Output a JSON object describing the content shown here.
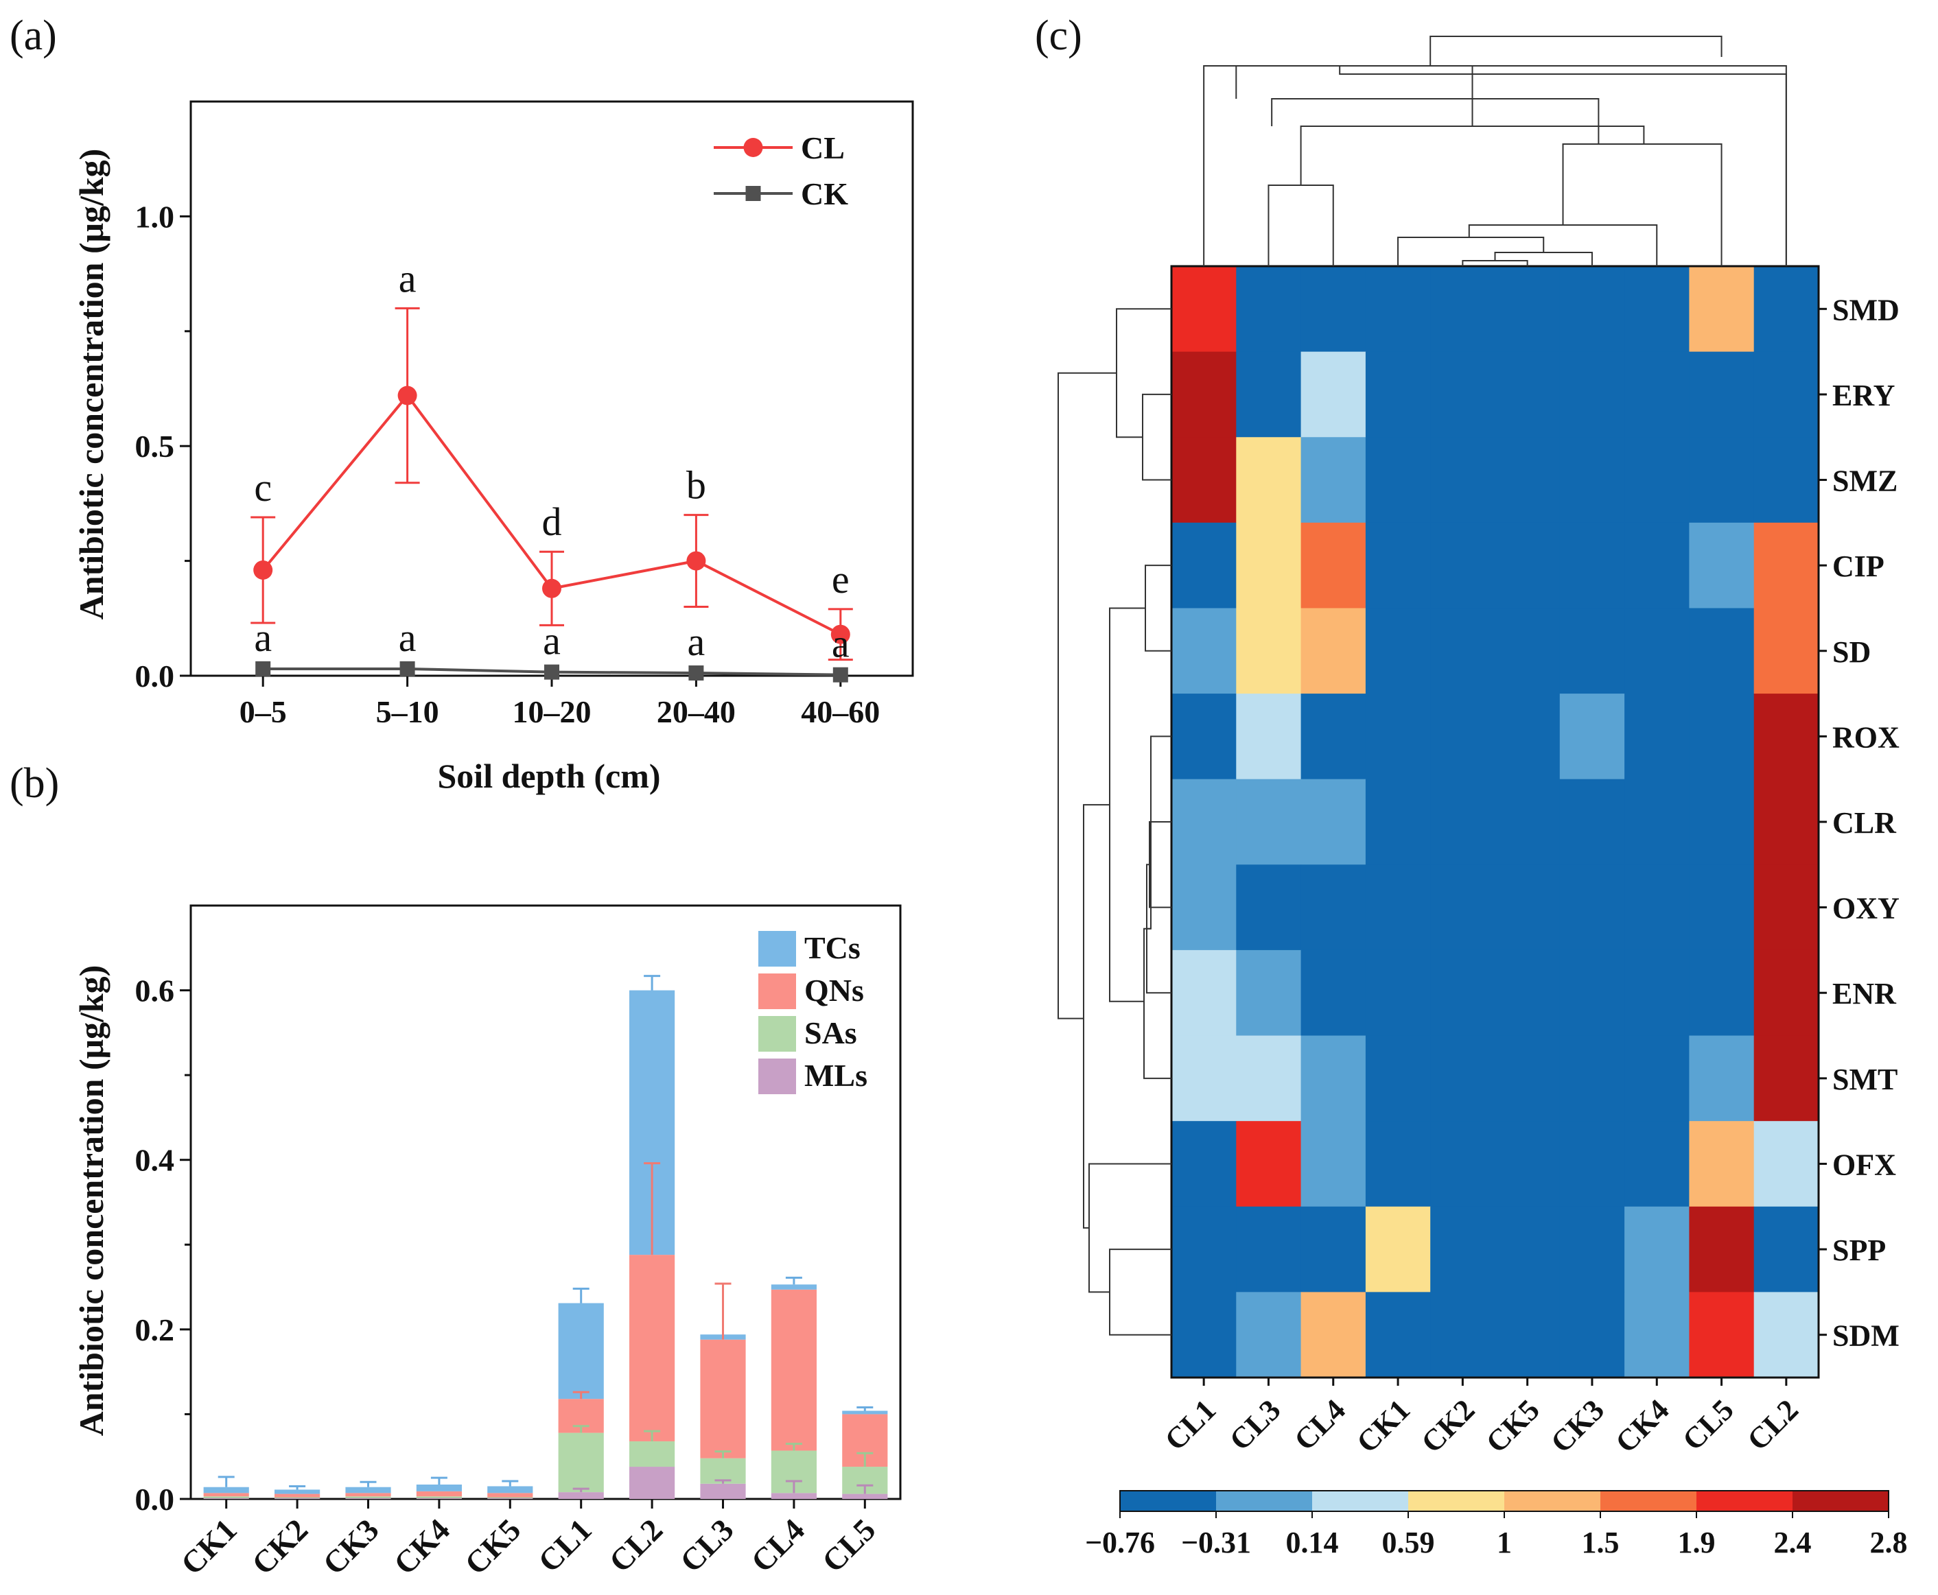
{
  "colors": {
    "CL": "#f03c3c",
    "CK": "#505050",
    "TCs": "#7ab8e6",
    "QNs": "#fa9088",
    "SAs": "#b2d8a9",
    "MLs": "#c8a0c6",
    "heat_scale": [
      "#1169b0",
      "#5aa3d3",
      "#bddff0",
      "#fbe08e",
      "#fbb772",
      "#f5703f",
      "#ec2a23",
      "#b51918"
    ]
  },
  "panels": {
    "a": "(a)",
    "b": "(b)",
    "c": "(c)"
  },
  "chart_data": [
    {
      "id": "a",
      "type": "line",
      "xlabel": "Soil depth (cm)",
      "ylabel": "Antibiotic concentration (μg/kg)",
      "categories": [
        "0–5",
        "5–10",
        "10–20",
        "20–40",
        "40–60"
      ],
      "ylim": [
        0,
        1.25
      ],
      "yticks": [
        0.0,
        0.5,
        1.0
      ],
      "ytick_labels": [
        "0.0",
        "0.5",
        "1.0"
      ],
      "legend_position": "top-right",
      "series": [
        {
          "name": "CL",
          "marker": "circle",
          "values": [
            0.23,
            0.61,
            0.19,
            0.25,
            0.09
          ],
          "errors": [
            0.115,
            0.19,
            0.08,
            0.1,
            0.055
          ],
          "letters": [
            "c",
            "a",
            "d",
            "b",
            "e"
          ]
        },
        {
          "name": "CK",
          "marker": "square",
          "values": [
            0.015,
            0.015,
            0.008,
            0.006,
            0.002
          ],
          "errors": [
            0.006,
            0.006,
            0.004,
            0.003,
            0.001
          ],
          "letters": [
            "a",
            "a",
            "a",
            "a",
            "a"
          ]
        }
      ]
    },
    {
      "id": "b",
      "type": "bar",
      "stacked": true,
      "ylabel": "Antibiotic concentration (μg/kg)",
      "categories": [
        "CK1",
        "CK2",
        "CK3",
        "CK4",
        "CK5",
        "CL1",
        "CL2",
        "CL3",
        "CL4",
        "CL5"
      ],
      "ylim": [
        0,
        0.7
      ],
      "yticks": [
        0.0,
        0.2,
        0.4,
        0.6
      ],
      "ytick_labels": [
        "0.0",
        "0.2",
        "0.4",
        "0.6"
      ],
      "legend_position": "top-right",
      "series": [
        {
          "name": "MLs",
          "values": [
            0.001,
            0.001,
            0.001,
            0.001,
            0.001,
            0.008,
            0.038,
            0.018,
            0.007,
            0.006
          ],
          "errors": [
            0.0,
            0.0,
            0.0,
            0.0,
            0.0,
            0.004,
            0.0,
            0.004,
            0.014,
            0.01
          ]
        },
        {
          "name": "SAs",
          "values": [
            0.002,
            0.001,
            0.002,
            0.002,
            0.001,
            0.07,
            0.03,
            0.03,
            0.05,
            0.032
          ],
          "errors": [
            0.0,
            0.0,
            0.0,
            0.0,
            0.0,
            0.008,
            0.012,
            0.008,
            0.008,
            0.016
          ]
        },
        {
          "name": "QNs",
          "values": [
            0.004,
            0.004,
            0.004,
            0.006,
            0.005,
            0.04,
            0.22,
            0.14,
            0.19,
            0.062
          ],
          "errors": [
            0.0,
            0.0,
            0.0,
            0.0,
            0.0,
            0.008,
            0.108,
            0.066,
            0.0,
            0.0
          ]
        },
        {
          "name": "TCs",
          "values": [
            0.007,
            0.005,
            0.007,
            0.008,
            0.008,
            0.113,
            0.312,
            0.006,
            0.006,
            0.004
          ],
          "errors": [
            0.012,
            0.004,
            0.006,
            0.008,
            0.006,
            0.017,
            0.017,
            0.0,
            0.008,
            0.004
          ]
        }
      ]
    },
    {
      "id": "c",
      "type": "heatmap",
      "columns": [
        "CL1",
        "CL3",
        "CL4",
        "CK1",
        "CK2",
        "CK5",
        "CK3",
        "CK4",
        "CL5",
        "CL2"
      ],
      "rows": [
        "SMD",
        "ERY",
        "SMZ",
        "CIP",
        "SD",
        "ROX",
        "CLR",
        "OXY",
        "ENR",
        "SMT",
        "OFX",
        "SPP",
        "SDM"
      ],
      "bins": [
        -0.76,
        -0.31,
        0.14,
        0.59,
        1,
        1.5,
        1.9,
        2.4,
        2.8
      ],
      "colorbar_labels": [
        "−0.76",
        "−0.31",
        "0.14",
        "0.59",
        "1",
        "1.5",
        "1.9",
        "2.4",
        "2.8"
      ],
      "values": [
        [
          2.2,
          -0.6,
          -0.6,
          -0.6,
          -0.6,
          -0.6,
          -0.6,
          -0.6,
          1.2,
          -0.6
        ],
        [
          2.6,
          -0.6,
          0.3,
          -0.6,
          -0.6,
          -0.6,
          -0.6,
          -0.6,
          -0.6,
          -0.6
        ],
        [
          2.6,
          0.8,
          -0.1,
          -0.6,
          -0.6,
          -0.6,
          -0.6,
          -0.6,
          -0.6,
          -0.6
        ],
        [
          -0.6,
          0.8,
          1.7,
          -0.6,
          -0.6,
          -0.6,
          -0.6,
          -0.6,
          -0.1,
          1.7
        ],
        [
          -0.1,
          0.8,
          1.2,
          -0.6,
          -0.6,
          -0.6,
          -0.6,
          -0.6,
          -0.6,
          1.7
        ],
        [
          -0.6,
          0.3,
          -0.6,
          -0.6,
          -0.6,
          -0.6,
          -0.1,
          -0.6,
          -0.6,
          2.6
        ],
        [
          -0.1,
          -0.1,
          -0.1,
          -0.6,
          -0.6,
          -0.6,
          -0.6,
          -0.6,
          -0.6,
          2.6
        ],
        [
          -0.1,
          -0.6,
          -0.6,
          -0.6,
          -0.6,
          -0.6,
          -0.6,
          -0.6,
          -0.6,
          2.6
        ],
        [
          0.3,
          -0.1,
          -0.6,
          -0.6,
          -0.6,
          -0.6,
          -0.6,
          -0.6,
          -0.6,
          2.6
        ],
        [
          0.3,
          0.3,
          -0.1,
          -0.6,
          -0.6,
          -0.6,
          -0.6,
          -0.6,
          -0.1,
          2.6
        ],
        [
          -0.6,
          2.2,
          -0.1,
          -0.6,
          -0.6,
          -0.6,
          -0.6,
          -0.6,
          1.2,
          0.3
        ],
        [
          -0.6,
          -0.6,
          -0.6,
          0.8,
          -0.6,
          -0.6,
          -0.6,
          -0.1,
          2.6,
          -0.6
        ],
        [
          -0.6,
          -0.1,
          1.2,
          -0.6,
          -0.6,
          -0.6,
          -0.6,
          -0.1,
          2.2,
          0.3
        ]
      ]
    }
  ]
}
